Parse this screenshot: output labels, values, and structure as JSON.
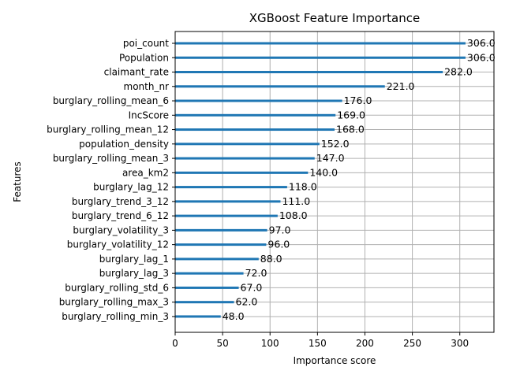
{
  "chart_data": {
    "type": "bar",
    "orientation": "horizontal",
    "title": "XGBoost Feature Importance",
    "xlabel": "Importance score",
    "ylabel": "Features",
    "xlim": [
      0,
      336
    ],
    "xticks": [
      0,
      50,
      100,
      150,
      200,
      250,
      300
    ],
    "grid": true,
    "categories": [
      "poi_count",
      "Population",
      "claimant_rate",
      "month_nr",
      "burglary_rolling_mean_6",
      "IncScore",
      "burglary_rolling_mean_12",
      "population_density",
      "burglary_rolling_mean_3",
      "area_km2",
      "burglary_lag_12",
      "burglary_trend_3_12",
      "burglary_trend_6_12",
      "burglary_volatility_3",
      "burglary_volatility_12",
      "burglary_lag_1",
      "burglary_lag_3",
      "burglary_rolling_std_6",
      "burglary_rolling_max_3",
      "burglary_rolling_min_3"
    ],
    "values": [
      306,
      306,
      282,
      221,
      176,
      169,
      168,
      152,
      147,
      140,
      118,
      111,
      108,
      97,
      96,
      88,
      72,
      67,
      62,
      48
    ],
    "value_labels": [
      "306.0",
      "306.0",
      "282.0",
      "221.0",
      "176.0",
      "169.0",
      "168.0",
      "152.0",
      "147.0",
      "140.0",
      "118.0",
      "111.0",
      "108.0",
      "97.0",
      "96.0",
      "88.0",
      "72.0",
      "67.0",
      "62.0",
      "48.0"
    ],
    "bar_color": "#1f77b4",
    "grid_color": "#b0b0b0"
  }
}
